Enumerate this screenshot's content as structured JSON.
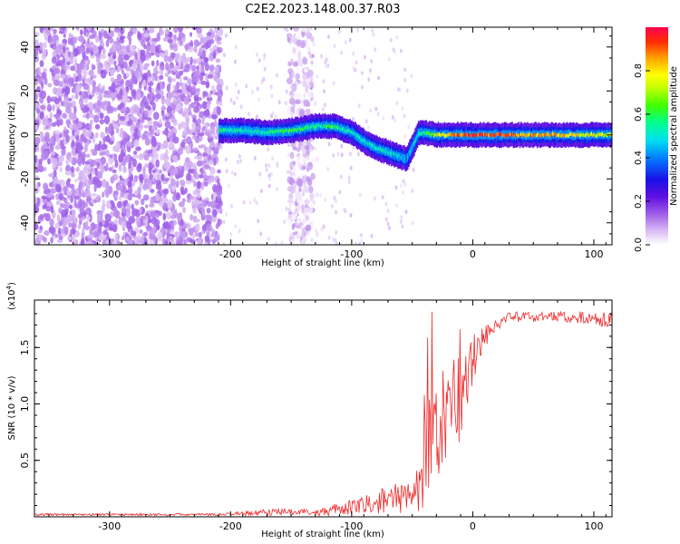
{
  "title": "C2E2.2023.148.00.37.R03",
  "chart_data": [
    {
      "type": "heatmap",
      "xlabel": "Height of straight line (km)",
      "ylabel": "Frequency (Hz)",
      "xlim": [
        -362,
        115
      ],
      "ylim": [
        -50,
        49
      ],
      "xticks": [
        -300,
        -200,
        -100,
        0,
        100
      ],
      "yticks": [
        -40,
        -20,
        0,
        20,
        40
      ],
      "colorbar": {
        "label": "Normalized spectral amplitude",
        "range": [
          0,
          1
        ],
        "ticks": [
          0.0,
          0.2,
          0.4,
          0.6,
          0.8
        ],
        "tick_labels": [
          "0.0",
          "0.2",
          "0.4",
          "0.6",
          "0.8"
        ],
        "colormap": "rainbow (white-violet-blue-cyan-green-yellow-red)"
      },
      "regions": [
        {
          "description": "broadband noise",
          "x_range": [
            -362,
            -208
          ],
          "freq_range": [
            -50,
            49
          ],
          "amplitude": [
            0.05,
            0.15
          ]
        },
        {
          "description": "noise strip",
          "x_range": [
            -152,
            -132
          ],
          "freq_range": [
            -50,
            49
          ],
          "amplitude": [
            0.0,
            0.1
          ]
        }
      ],
      "ridge": {
        "x": [
          -210,
          -190,
          -170,
          -150,
          -130,
          -115,
          -100,
          -90,
          -80,
          -70,
          -60,
          -55,
          -50,
          -45,
          -40,
          -30,
          -20,
          -10,
          0,
          20,
          40,
          60,
          80,
          100,
          115
        ],
        "frequency": [
          2,
          2,
          1,
          2,
          4,
          4,
          1,
          -3,
          -6,
          -8,
          -10,
          -11,
          -5,
          1,
          1,
          0,
          0,
          0,
          0,
          0,
          0,
          0,
          0,
          0,
          0
        ],
        "amplitude": [
          0.55,
          0.5,
          0.55,
          0.6,
          0.55,
          0.6,
          0.5,
          0.5,
          0.55,
          0.5,
          0.45,
          0.4,
          0.5,
          0.55,
          0.6,
          0.75,
          0.85,
          0.9,
          0.95,
          0.9,
          0.85,
          0.85,
          0.8,
          0.75,
          0.7
        ]
      }
    },
    {
      "type": "line",
      "xlabel": "Height of straight line (km)",
      "ylabel": "SNR (10 * v/v)",
      "y_multiplier": "(x10",
      "y_multiplier_exp": "4",
      "xlim": [
        -362,
        115
      ],
      "ylim": [
        0,
        1.92
      ],
      "xticks": [
        -300,
        -200,
        -100,
        0,
        100
      ],
      "yticks": [
        0.5,
        1.0,
        1.5
      ],
      "ytick_labels": [
        "0.5",
        "1.0",
        "1.5"
      ],
      "series": [
        {
          "color": "#ee2b2b",
          "x": [
            -362,
            -300,
            -250,
            -210,
            -190,
            -170,
            -150,
            -130,
            -115,
            -100,
            -90,
            -80,
            -70,
            -60,
            -50,
            -45,
            -40,
            -35,
            -30,
            -25,
            -20,
            -15,
            -10,
            -5,
            0,
            5,
            10,
            15,
            20,
            30,
            40,
            60,
            80,
            100,
            115
          ],
          "y_mean": [
            0.02,
            0.02,
            0.02,
            0.02,
            0.03,
            0.04,
            0.05,
            0.04,
            0.06,
            0.08,
            0.1,
            0.13,
            0.15,
            0.17,
            0.18,
            0.25,
            0.45,
            0.65,
            0.8,
            0.85,
            0.9,
            1.0,
            1.05,
            1.2,
            1.4,
            1.5,
            1.6,
            1.65,
            1.72,
            1.76,
            1.77,
            1.78,
            1.77,
            1.76,
            1.74
          ],
          "y_spread": [
            0.01,
            0.01,
            0.01,
            0.01,
            0.02,
            0.03,
            0.03,
            0.03,
            0.05,
            0.07,
            0.08,
            0.1,
            0.12,
            0.14,
            0.15,
            0.25,
            0.4,
            0.55,
            0.55,
            0.5,
            0.45,
            0.45,
            0.4,
            0.35,
            0.25,
            0.18,
            0.12,
            0.08,
            0.06,
            0.05,
            0.05,
            0.05,
            0.05,
            0.06,
            0.07
          ]
        }
      ]
    }
  ]
}
